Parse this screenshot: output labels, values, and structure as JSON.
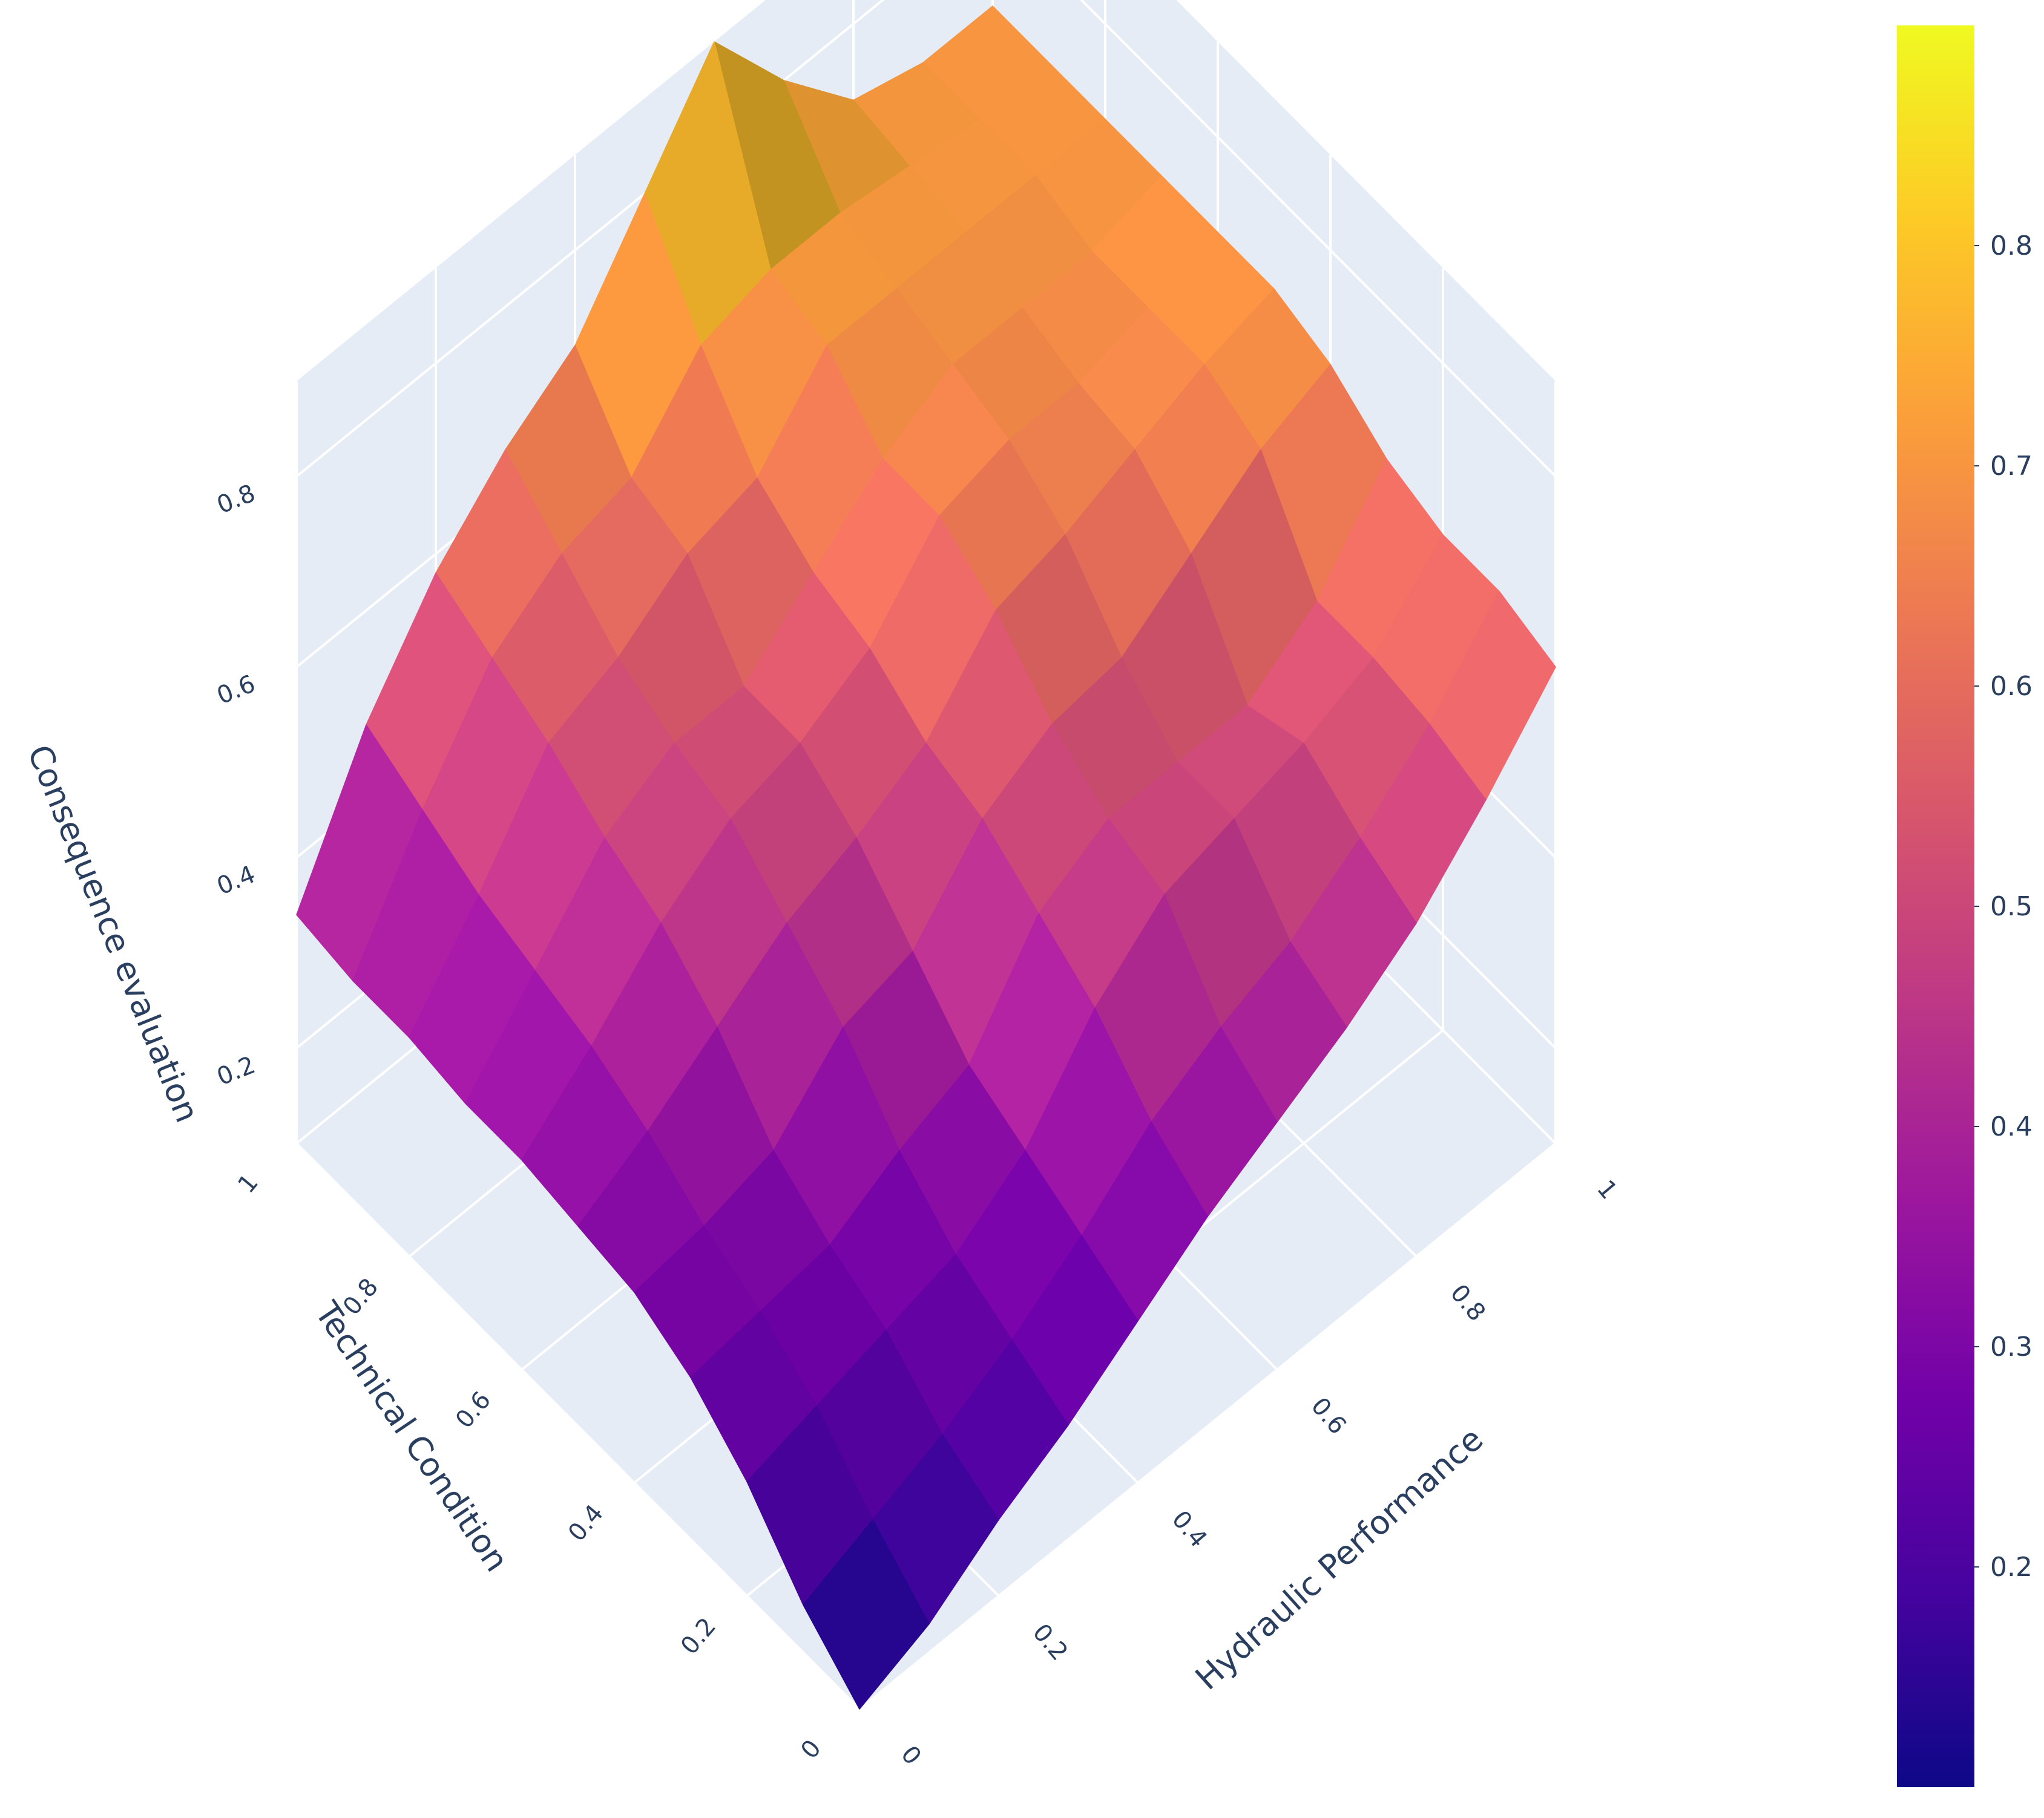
{
  "chart_data": {
    "type": "surface3d",
    "title": "",
    "x_axis": {
      "label": "Hydraulic Performance",
      "ticks": [
        "0",
        "0.2",
        "0.4",
        "0.6",
        "0.8",
        "1"
      ],
      "range": [
        0,
        1
      ]
    },
    "y_axis": {
      "label": "Technical Condition",
      "ticks": [
        "0",
        "0.2",
        "0.4",
        "0.6",
        "0.8",
        "1"
      ],
      "range": [
        0,
        1
      ]
    },
    "z_axis": {
      "label": "Consequence evaluation",
      "ticks": [
        "0.2",
        "0.4",
        "0.6",
        "0.8"
      ],
      "range": [
        0.1,
        0.9
      ]
    },
    "grid": true,
    "colorscale": "plasma",
    "colorbar": {
      "ticks": [
        "0.2",
        "0.3",
        "0.4",
        "0.5",
        "0.6",
        "0.7",
        "0.8"
      ],
      "range": [
        0.1,
        0.9
      ],
      "placement": "right"
    },
    "grid_x": [
      0,
      0.1,
      0.2,
      0.3,
      0.4,
      0.5,
      0.6,
      0.7,
      0.8,
      0.9,
      1.0
    ],
    "grid_y": [
      0,
      0.1,
      0.2,
      0.3,
      0.4,
      0.5,
      0.6,
      0.7,
      0.8,
      0.9,
      1.0
    ],
    "z": [
      [
        0.1,
        0.13,
        0.18,
        0.22,
        0.27,
        0.32,
        0.36,
        0.4,
        0.45,
        0.52,
        0.6
      ],
      [
        0.15,
        0.18,
        0.21,
        0.25,
        0.3,
        0.36,
        0.4,
        0.43,
        0.48,
        0.54,
        0.62
      ],
      [
        0.22,
        0.24,
        0.26,
        0.28,
        0.33,
        0.42,
        0.48,
        0.5,
        0.52,
        0.55,
        0.62
      ],
      [
        0.27,
        0.28,
        0.29,
        0.33,
        0.36,
        0.46,
        0.5,
        0.5,
        0.5,
        0.55,
        0.64
      ],
      [
        0.3,
        0.31,
        0.33,
        0.4,
        0.42,
        0.5,
        0.54,
        0.55,
        0.6,
        0.65,
        0.68
      ],
      [
        0.31,
        0.35,
        0.4,
        0.45,
        0.48,
        0.52,
        0.6,
        0.62,
        0.65,
        0.68,
        0.7
      ],
      [
        0.32,
        0.38,
        0.45,
        0.5,
        0.52,
        0.56,
        0.64,
        0.66,
        0.66,
        0.68,
        0.7
      ],
      [
        0.32,
        0.4,
        0.48,
        0.52,
        0.52,
        0.58,
        0.64,
        0.68,
        0.68,
        0.68,
        0.7
      ],
      [
        0.33,
        0.42,
        0.52,
        0.55,
        0.6,
        0.62,
        0.7,
        0.7,
        0.7,
        0.7,
        0.7
      ],
      [
        0.33,
        0.45,
        0.55,
        0.6,
        0.62,
        0.7,
        0.72,
        0.72,
        0.71,
        0.7,
        0.7
      ],
      [
        0.34,
        0.48,
        0.58,
        0.65,
        0.7,
        0.8,
        0.9,
        0.8,
        0.72,
        0.7,
        0.7
      ]
    ]
  }
}
